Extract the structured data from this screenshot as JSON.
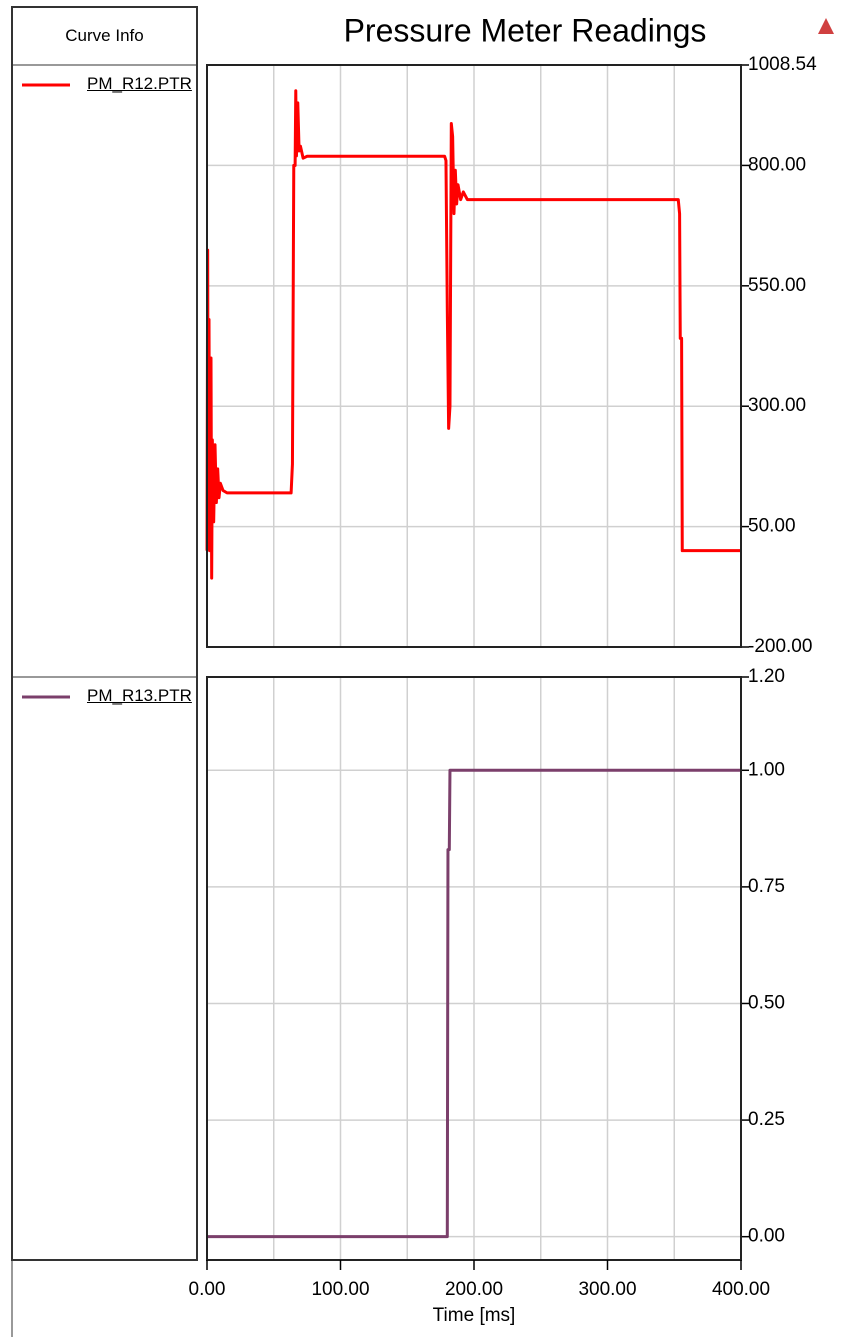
{
  "legend_header": "Curve Info",
  "chart_data": [
    {
      "type": "line",
      "title": "Pressure Meter Readings",
      "x": [
        0,
        0.5,
        1,
        1.5,
        2,
        3,
        3.5,
        4,
        5,
        6,
        7,
        8,
        9,
        10,
        12,
        15,
        63,
        64,
        65,
        66,
        66.5,
        67,
        68,
        69,
        70,
        72,
        75,
        178,
        179,
        180,
        181,
        182,
        183,
        184,
        185,
        186,
        187,
        188,
        190,
        192,
        195,
        200,
        353,
        354,
        354.5,
        355.5,
        356,
        357,
        400
      ],
      "series": [
        {
          "name": "PM_R12.PTR",
          "color": "#ff0000",
          "values": [
            0,
            624,
            30,
            480,
            0,
            400,
            -57,
            230,
            60,
            220,
            100,
            170,
            110,
            140,
            125,
            120,
            120,
            180,
            800,
            800,
            955,
            820,
            930,
            830,
            840,
            815,
            819,
            819,
            810,
            500,
            254,
            300,
            887,
            860,
            700,
            790,
            720,
            760,
            729,
            745,
            729,
            729,
            729,
            700,
            441,
            441,
            0,
            0,
            0
          ]
        }
      ],
      "xlim": [
        0,
        400
      ],
      "ylim": [
        -200,
        1008.54
      ],
      "yticks": [
        {
          "value": 1008.54,
          "label": "1008.54"
        },
        {
          "value": 800,
          "label": "800.00"
        },
        {
          "value": 550,
          "label": "550.00"
        },
        {
          "value": 300,
          "label": "300.00"
        },
        {
          "value": 50,
          "label": "50.00"
        },
        {
          "value": -200,
          "label": "-200.00"
        }
      ],
      "grid": true
    },
    {
      "type": "line",
      "x": [
        0,
        180,
        180.5,
        181.5,
        182,
        400
      ],
      "series": [
        {
          "name": "PM_R13.PTR",
          "color": "#7b3f6b",
          "values": [
            0,
            0,
            0.83,
            0.83,
            1,
            1
          ]
        }
      ],
      "xlim": [
        0,
        400
      ],
      "ylim": [
        -0.05,
        1.2
      ],
      "yticks": [
        {
          "value": 1.2,
          "label": "1.20"
        },
        {
          "value": 1,
          "label": "1.00"
        },
        {
          "value": 0.75,
          "label": "0.75"
        },
        {
          "value": 0.5,
          "label": "0.50"
        },
        {
          "value": 0.25,
          "label": "0.25"
        },
        {
          "value": 0,
          "label": "0.00"
        }
      ],
      "xgrid": [
        50,
        100,
        150,
        200,
        250,
        300,
        350
      ],
      "xticks": [
        {
          "value": 0,
          "label": "0.00"
        },
        {
          "value": 100,
          "label": "100.00"
        },
        {
          "value": 200,
          "label": "200.00"
        },
        {
          "value": 300,
          "label": "300.00"
        },
        {
          "value": 400,
          "label": "400.00"
        }
      ],
      "xlabel": "Time [ms]",
      "grid": true
    }
  ]
}
